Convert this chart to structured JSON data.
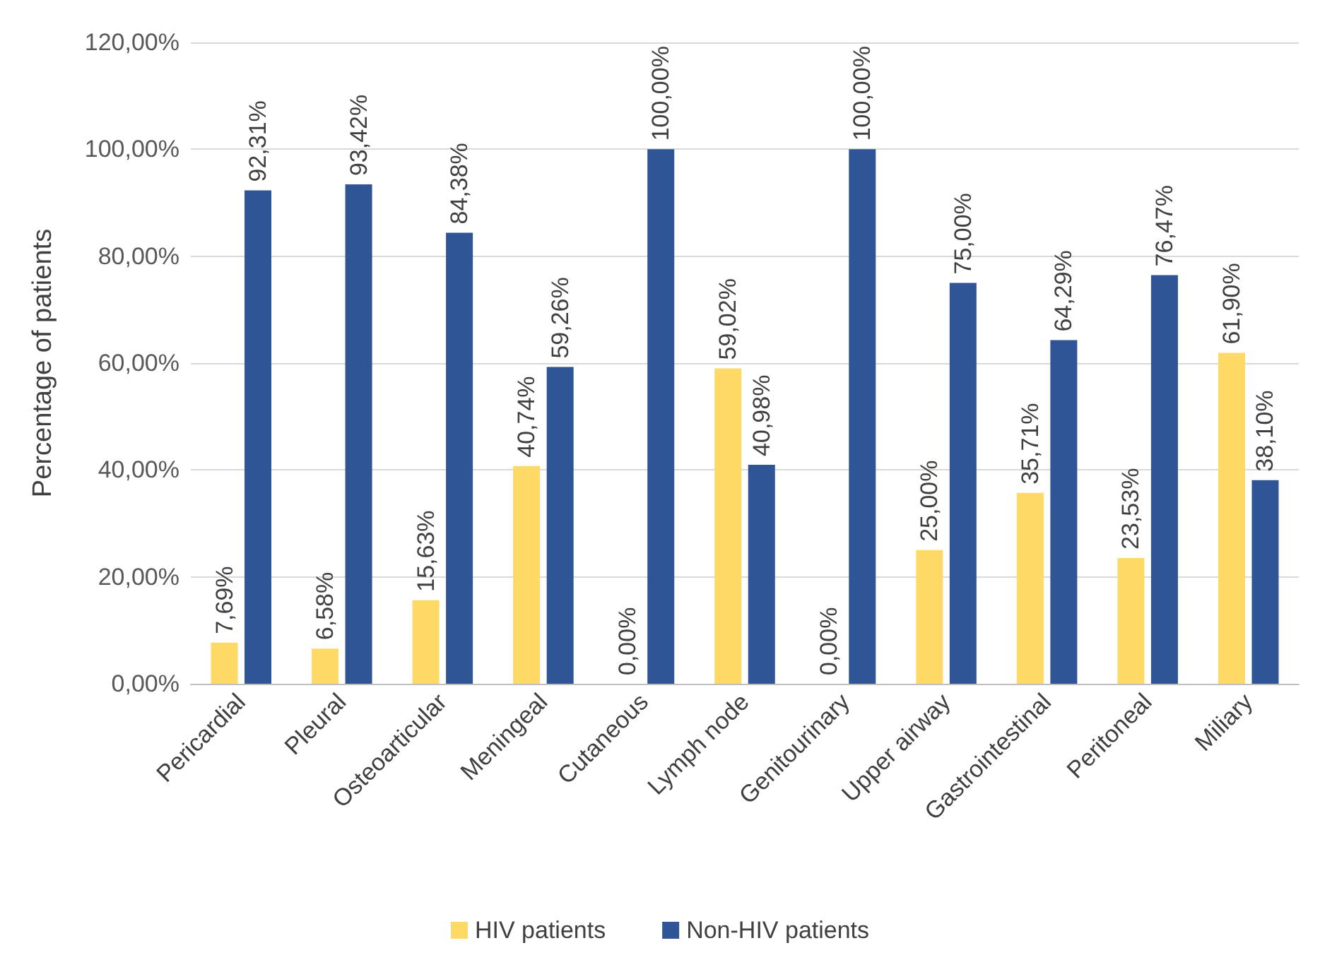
{
  "chart_data": {
    "type": "bar",
    "ylabel": "Percentage of patients",
    "categories": [
      "Pericardial",
      "Pleural",
      "Osteoarticular",
      "Meningeal",
      "Cutaneous",
      "Lymph node",
      "Genitourinary",
      "Upper airway",
      "Gastrointestinal",
      "Peritoneal",
      "Miliary"
    ],
    "series": [
      {
        "name": "HIV patients",
        "color": "#ffd966",
        "values": [
          7.69,
          6.58,
          15.63,
          40.74,
          0,
          59.02,
          0,
          25,
          35.71,
          23.53,
          61.9
        ],
        "value_labels": [
          "7,69%",
          "6,58%",
          "15,63%",
          "40,74%",
          "0,00%",
          "59,02%",
          "0,00%",
          "25,00%",
          "35,71%",
          "23,53%",
          "61,90%"
        ]
      },
      {
        "name": "Non-HIV patients",
        "color": "#2f5597",
        "values": [
          92.31,
          93.42,
          84.38,
          59.26,
          100,
          40.98,
          100,
          75,
          64.29,
          76.47,
          38.1
        ],
        "value_labels": [
          "92,31%",
          "93,42%",
          "84,38%",
          "59,26%",
          "100,00%",
          "40,98%",
          "100,00%",
          "75,00%",
          "64,29%",
          "76,47%",
          "38,10%"
        ]
      }
    ],
    "ylim": [
      0,
      120
    ],
    "yticks": [
      {
        "value": 0,
        "label": "0,00%"
      },
      {
        "value": 20,
        "label": "20,00%"
      },
      {
        "value": 40,
        "label": "40,00%"
      },
      {
        "value": 60,
        "label": "60,00%"
      },
      {
        "value": 80,
        "label": "80,00%"
      },
      {
        "value": 100,
        "label": "100,00%"
      },
      {
        "value": 120,
        "label": "120,00%"
      }
    ],
    "grid": "y",
    "legend": "bottom"
  }
}
